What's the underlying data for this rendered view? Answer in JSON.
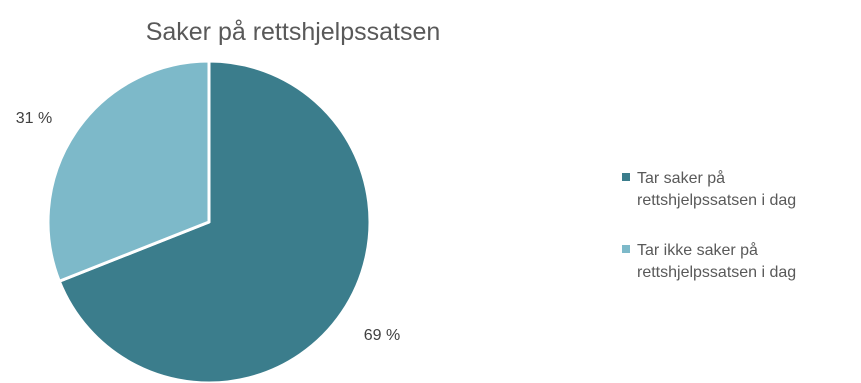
{
  "chart_data": {
    "type": "pie",
    "title": "Saker på rettshjelpssatsen",
    "slices": [
      {
        "label_lines": [
          "Tar saker på",
          "rettshjelpssatsen i dag"
        ],
        "value": 69,
        "value_label": "69 %",
        "color": "#3b7d8c"
      },
      {
        "label_lines": [
          "Tar ikke saker på",
          "rettshjelpssatsen i dag"
        ],
        "value": 31,
        "value_label": "31 %",
        "color": "#7db9c9"
      }
    ],
    "legend_position": "right",
    "start_angle": "top (12 o'clock)",
    "direction": "clockwise",
    "slice_border_color": "#ffffff"
  }
}
